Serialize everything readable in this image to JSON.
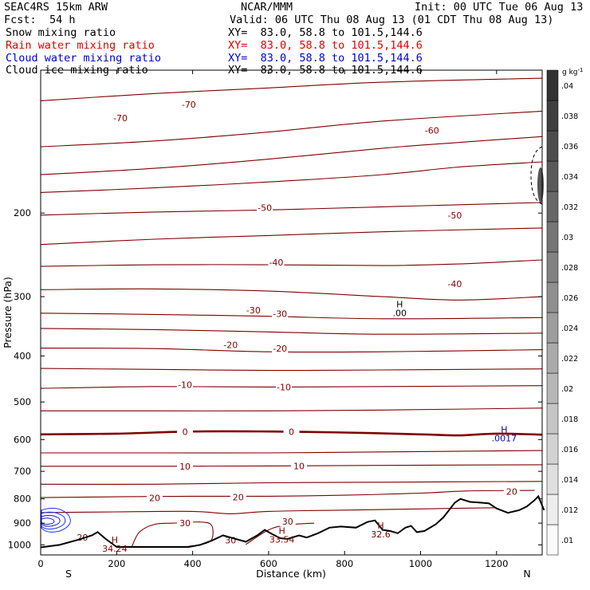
{
  "header": {
    "model": "SEAC4RS 15km ARW",
    "center": "NCAR/MMM",
    "init": "Init: 00 UTC Tue 06 Aug 13",
    "fcst_label": "Fcst:",
    "fcst_value": "54 h",
    "valid": "Valid: 06 UTC Thu 08 Aug 13 (01 CDT Thu 08 Aug 13)",
    "fields": [
      {
        "name": "Snow mixing ratio",
        "xy": "XY=  83.0, 58.8 to 101.5,144.6",
        "color": "#000000"
      },
      {
        "name": "Rain water mixing ratio",
        "xy": "XY=  83.0, 58.8 to 101.5,144.6",
        "color": "#e00000"
      },
      {
        "name": "Cloud water mixing ratio",
        "xy": "XY=  83.0, 58.8 to 101.5,144.6",
        "color": "#0000d0"
      },
      {
        "name": "Cloud ice mixing ratio",
        "xy": "XY=  83.0, 58.8 to 101.5,144.6",
        "color": "#000000"
      }
    ]
  },
  "chart_data": {
    "type": "cross-section contour",
    "xlabel": "Distance (km)",
    "ylabel": "Pressure (hPa)",
    "xlim": [
      0,
      1320
    ],
    "ylim": [
      1050,
      100
    ],
    "y_log": true,
    "x_ticks": [
      0,
      200,
      400,
      600,
      800,
      1000,
      1200
    ],
    "y_ticks": [
      200,
      300,
      400,
      500,
      600,
      700,
      800,
      900,
      1000
    ],
    "endpoints": {
      "left": "S",
      "right": "N"
    },
    "temperature_contours": {
      "units": "°C",
      "interval": 5,
      "color": "#800000",
      "levels": [
        {
          "t": -70,
          "p": [
            [
              0,
              116
            ],
            [
              300,
              112
            ],
            [
              600,
              109
            ],
            [
              900,
              106
            ],
            [
              1320,
              104
            ]
          ]
        },
        {
          "t": -65,
          "p": [
            [
              0,
              145
            ],
            [
              300,
              141
            ],
            [
              600,
              135
            ],
            [
              900,
              128
            ],
            [
              1320,
              122
            ]
          ]
        },
        {
          "t": -60,
          "p": [
            [
              0,
              166
            ],
            [
              300,
              161
            ],
            [
              600,
              154
            ],
            [
              900,
              146
            ],
            [
              1100,
              142
            ],
            [
              1320,
              138
            ]
          ]
        },
        {
          "t": -55,
          "p": [
            [
              0,
              181
            ],
            [
              300,
              177
            ],
            [
              600,
              172
            ],
            [
              900,
              166
            ],
            [
              1100,
              160
            ],
            [
              1320,
              156
            ]
          ]
        },
        {
          "t": -50,
          "p": [
            [
              0,
              202
            ],
            [
              300,
              199
            ],
            [
              600,
              197
            ],
            [
              900,
              194
            ],
            [
              1320,
              190
            ]
          ]
        },
        {
          "t": -45,
          "p": [
            [
              0,
              233
            ],
            [
              300,
              227
            ],
            [
              600,
              223
            ],
            [
              900,
              219
            ],
            [
              1320,
              215
            ]
          ]
        },
        {
          "t": -40,
          "p": [
            [
              0,
              259
            ],
            [
              300,
              257
            ],
            [
              600,
              257
            ],
            [
              900,
              258
            ],
            [
              1100,
              256
            ],
            [
              1320,
              251
            ]
          ]
        },
        {
          "t": -35,
          "p": [
            [
              0,
              290
            ],
            [
              300,
              289
            ],
            [
              600,
              292
            ],
            [
              900,
              300
            ],
            [
              1100,
              305
            ],
            [
              1320,
              300
            ]
          ]
        },
        {
          "t": -30,
          "p": [
            [
              0,
              325
            ],
            [
              300,
              327
            ],
            [
              600,
              330
            ],
            [
              900,
              334
            ],
            [
              1320,
              332
            ]
          ]
        },
        {
          "t": -25,
          "p": [
            [
              0,
              350
            ],
            [
              300,
              352
            ],
            [
              600,
              356
            ],
            [
              900,
              360
            ],
            [
              1320,
              358
            ]
          ]
        },
        {
          "t": -20,
          "p": [
            [
              0,
              385
            ],
            [
              300,
              386
            ],
            [
              600,
              392
            ],
            [
              900,
              392
            ],
            [
              1320,
              388
            ]
          ]
        },
        {
          "t": -15,
          "p": [
            [
              0,
              425
            ],
            [
              300,
              427
            ],
            [
              600,
              429
            ],
            [
              900,
              428
            ],
            [
              1320,
              426
            ]
          ]
        },
        {
          "t": -10,
          "p": [
            [
              0,
              468
            ],
            [
              300,
              464
            ],
            [
              600,
              465
            ],
            [
              900,
              464
            ],
            [
              1320,
              462
            ]
          ]
        },
        {
          "t": -5,
          "p": [
            [
              0,
              522
            ],
            [
              300,
              522
            ],
            [
              600,
              522
            ],
            [
              900,
              520
            ],
            [
              1320,
              515
            ]
          ]
        },
        {
          "t": 0,
          "bold": true,
          "p": [
            [
              0,
              585
            ],
            [
              200,
              583
            ],
            [
              400,
              577
            ],
            [
              600,
              577
            ],
            [
              800,
              580
            ],
            [
              1000,
              585
            ],
            [
              1100,
              588
            ],
            [
              1200,
              583
            ],
            [
              1320,
              586
            ]
          ]
        },
        {
          "t": 5,
          "p": [
            [
              0,
              640
            ],
            [
              300,
              640
            ],
            [
              600,
              640
            ],
            [
              900,
              637
            ],
            [
              1320,
              633
            ]
          ]
        },
        {
          "t": 10,
          "p": [
            [
              0,
              683
            ],
            [
              300,
              683
            ],
            [
              600,
              682
            ],
            [
              900,
              680
            ],
            [
              1320,
              678
            ]
          ]
        },
        {
          "t": 15,
          "p": [
            [
              0,
              745
            ],
            [
              300,
              745
            ],
            [
              600,
              740
            ],
            [
              900,
              738
            ],
            [
              1320,
              735
            ]
          ]
        },
        {
          "t": 20,
          "p": [
            [
              0,
              795
            ],
            [
              200,
              792
            ],
            [
              400,
              790
            ],
            [
              600,
              790
            ],
            [
              800,
              786
            ],
            [
              1000,
              778
            ],
            [
              1120,
              770
            ],
            [
              1300,
              768
            ]
          ]
        },
        {
          "t": 25,
          "p": [
            [
              0,
              855
            ],
            [
              200,
              852
            ],
            [
              400,
              850
            ],
            [
              500,
              860
            ],
            [
              600,
              850
            ],
            [
              800,
              845
            ],
            [
              1000,
              840
            ],
            [
              1200,
              835
            ]
          ]
        },
        {
          "t": 30,
          "p": [
            [
              240,
              1008
            ],
            [
              260,
              940
            ],
            [
              300,
              905
            ],
            [
              350,
              900
            ],
            [
              420,
              895
            ],
            [
              450,
              910
            ],
            [
              450,
              975
            ],
            [
              420,
              1000
            ],
            [
              390,
              1006
            ]
          ]
        },
        {
          "t": 30,
          "p": [
            [
              540,
              998
            ],
            [
              600,
              930
            ],
            [
              650,
              908
            ],
            [
              720,
              900
            ]
          ]
        }
      ],
      "labels": [
        {
          "x": 210,
          "p": 126,
          "text": "-70"
        },
        {
          "x": 390,
          "p": 118,
          "text": "-70"
        },
        {
          "x": 1030,
          "p": 134,
          "text": "-60"
        },
        {
          "x": 590,
          "p": 195,
          "text": "-50"
        },
        {
          "x": 1090,
          "p": 202,
          "text": "-50"
        },
        {
          "x": 620,
          "p": 254,
          "text": "-40"
        },
        {
          "x": 1090,
          "p": 282,
          "text": "-40"
        },
        {
          "x": 560,
          "p": 320,
          "text": "-30"
        },
        {
          "x": 630,
          "p": 326,
          "text": "-30"
        },
        {
          "x": 500,
          "p": 379,
          "text": "-20"
        },
        {
          "x": 630,
          "p": 386,
          "text": "-20"
        },
        {
          "x": 380,
          "p": 460,
          "text": "-10"
        },
        {
          "x": 640,
          "p": 465,
          "text": "-10"
        },
        {
          "x": 380,
          "p": 578,
          "text": "0"
        },
        {
          "x": 660,
          "p": 578,
          "text": "0"
        },
        {
          "x": 380,
          "p": 684,
          "text": "10"
        },
        {
          "x": 680,
          "p": 682,
          "text": "10"
        },
        {
          "x": 300,
          "p": 796,
          "text": "20"
        },
        {
          "x": 520,
          "p": 794,
          "text": "20"
        },
        {
          "x": 1240,
          "p": 772,
          "text": "20"
        },
        {
          "x": 380,
          "p": 900,
          "text": "30"
        },
        {
          "x": 650,
          "p": 893,
          "text": "30"
        },
        {
          "x": 500,
          "p": 978,
          "text": "30"
        },
        {
          "x": 110,
          "p": 965,
          "text": "20"
        }
      ],
      "extrema": [
        {
          "x": 195,
          "p": 990,
          "mark": "H",
          "value": "34.24"
        },
        {
          "x": 635,
          "p": 947,
          "mark": "H",
          "value": "33.54"
        },
        {
          "x": 895,
          "p": 925,
          "mark": "H",
          "value": "32.6"
        }
      ]
    },
    "mixing_ratio": {
      "units": "g kg-1",
      "cloud_water_extrema": [
        {
          "x": 1220,
          "p": 580,
          "mark": "H",
          "value": ".0017"
        }
      ],
      "snow_extrema": [
        {
          "x": 945,
          "p": 316,
          "mark": "H",
          "value": ".00"
        }
      ]
    },
    "terrain_pressure": [
      [
        0,
        1012
      ],
      [
        50,
        1000
      ],
      [
        100,
        975
      ],
      [
        135,
        955
      ],
      [
        150,
        940
      ],
      [
        170,
        970
      ],
      [
        200,
        1010
      ],
      [
        300,
        1010
      ],
      [
        390,
        1010
      ],
      [
        420,
        1000
      ],
      [
        450,
        980
      ],
      [
        480,
        955
      ],
      [
        500,
        965
      ],
      [
        540,
        985
      ],
      [
        570,
        955
      ],
      [
        590,
        930
      ],
      [
        605,
        945
      ],
      [
        630,
        968
      ],
      [
        650,
        972
      ],
      [
        680,
        955
      ],
      [
        700,
        965
      ],
      [
        730,
        945
      ],
      [
        760,
        920
      ],
      [
        790,
        915
      ],
      [
        830,
        920
      ],
      [
        860,
        895
      ],
      [
        880,
        888
      ],
      [
        900,
        930
      ],
      [
        920,
        935
      ],
      [
        940,
        945
      ],
      [
        960,
        920
      ],
      [
        975,
        912
      ],
      [
        990,
        940
      ],
      [
        1010,
        935
      ],
      [
        1040,
        905
      ],
      [
        1060,
        875
      ],
      [
        1075,
        845
      ],
      [
        1090,
        815
      ],
      [
        1105,
        800
      ],
      [
        1130,
        812
      ],
      [
        1160,
        815
      ],
      [
        1180,
        818
      ],
      [
        1200,
        838
      ],
      [
        1230,
        856
      ],
      [
        1260,
        845
      ],
      [
        1280,
        830
      ],
      [
        1300,
        805
      ],
      [
        1310,
        790
      ],
      [
        1325,
        845
      ]
    ],
    "colorbar": {
      "units": "g kg",
      "units_sup": "-1",
      "ticks": [
        ".01",
        ".012",
        ".014",
        ".016",
        ".018",
        ".02",
        ".022",
        ".024",
        ".026",
        ".028",
        ".03",
        ".032",
        ".034",
        ".036",
        ".038",
        ".04"
      ]
    }
  }
}
